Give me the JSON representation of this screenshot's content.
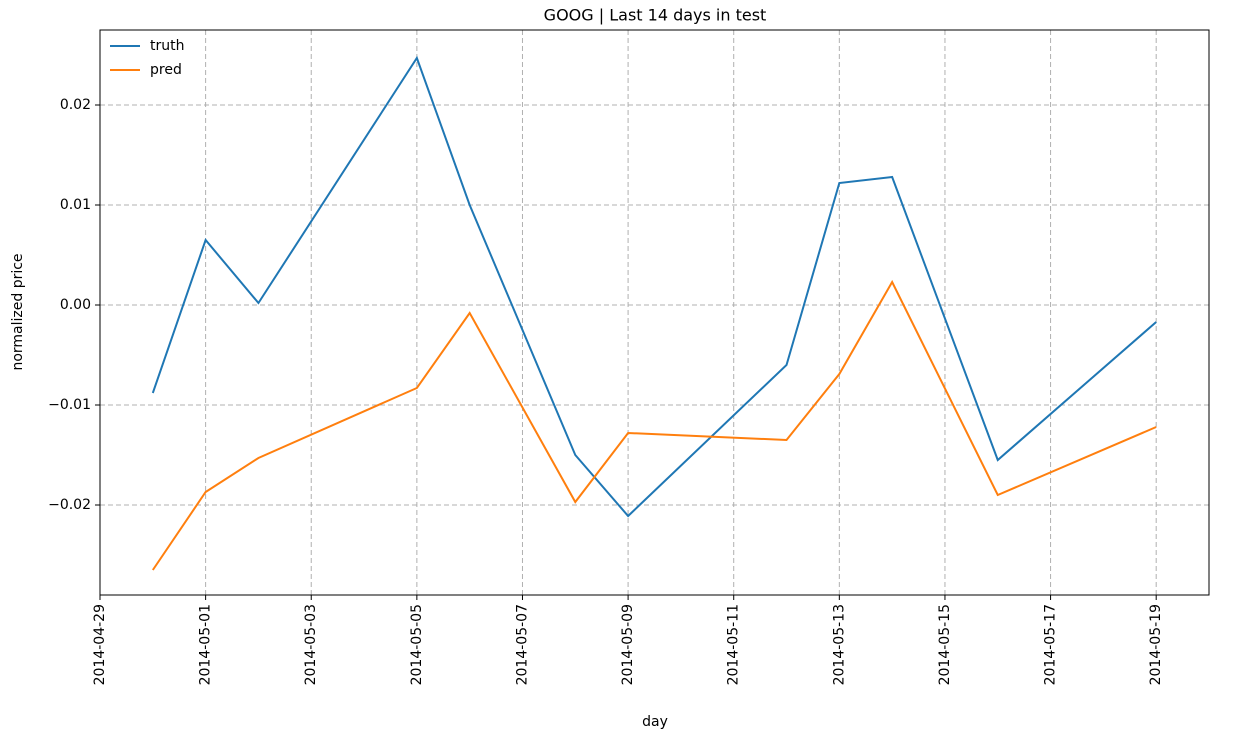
{
  "chart_data": {
    "type": "line",
    "title": "GOOG | Last 14 days in test",
    "xlabel": "day",
    "ylabel": "normalized price",
    "x": [
      "2014-04-30",
      "2014-05-01",
      "2014-05-02",
      "2014-05-05",
      "2014-05-06",
      "2014-05-08",
      "2014-05-09",
      "2014-05-12",
      "2014-05-13",
      "2014-05-14",
      "2014-05-16",
      "2014-05-19"
    ],
    "series": [
      {
        "name": "truth",
        "color": "#1f77b4",
        "values": [
          -0.0088,
          0.0065,
          0.0002,
          0.0247,
          0.01,
          -0.015,
          -0.0211,
          -0.006,
          0.0122,
          0.0128,
          -0.0155,
          -0.0017
        ]
      },
      {
        "name": "pred",
        "color": "#ff7f0e",
        "values": [
          -0.0265,
          -0.0187,
          -0.0153,
          -0.0083,
          -0.0008,
          -0.0197,
          -0.0128,
          -0.0135,
          -0.0069,
          0.0023,
          -0.019,
          -0.0122
        ]
      }
    ],
    "xlim": [
      "2014-04-29",
      "2014-05-20"
    ],
    "xticks": [
      "2014-04-29",
      "2014-05-01",
      "2014-05-03",
      "2014-05-05",
      "2014-05-07",
      "2014-05-09",
      "2014-05-11",
      "2014-05-13",
      "2014-05-15",
      "2014-05-17",
      "2014-05-19"
    ],
    "ylim": [
      -0.029,
      0.0275
    ],
    "yticks": [
      {
        "value": -0.02,
        "label": "−0.02"
      },
      {
        "value": -0.01,
        "label": "−0.01"
      },
      {
        "value": 0,
        "label": "0.00"
      },
      0.01,
      0.02
    ],
    "grid": true,
    "legend": "upper left"
  }
}
